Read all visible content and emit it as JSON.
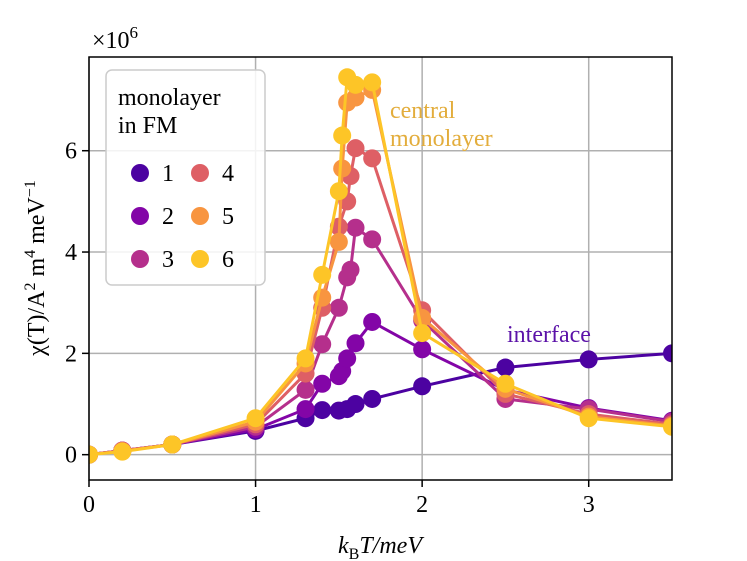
{
  "chart_data": {
    "type": "line",
    "offset_label": [
      "×10",
      "6"
    ],
    "xlabel": [
      "k",
      "B",
      "T/meV"
    ],
    "ylabel": [
      "χ(T)/A",
      "2",
      " m",
      "4",
      " meV",
      "−1"
    ],
    "xlim": [
      0,
      3.5
    ],
    "xticks": [
      0,
      1,
      2,
      3
    ],
    "ylim": [
      -0.5,
      7.85
    ],
    "yticks": [
      0,
      2,
      4,
      6
    ],
    "grid": true,
    "legend_position": "upper left",
    "legend_title": [
      "monolayer",
      "in FM"
    ],
    "series": [
      {
        "name": "1",
        "color": "#4c02a1",
        "x": [
          0,
          0.2,
          0.5,
          1,
          1.3,
          1.4,
          1.5,
          1.55,
          1.6,
          1.7,
          2,
          2.5,
          3,
          3.5
        ],
        "values": [
          0,
          0.08,
          0.2,
          0.47,
          0.72,
          0.88,
          0.87,
          0.9,
          1.0,
          1.1,
          1.35,
          1.72,
          1.88,
          2.0
        ]
      },
      {
        "name": "2",
        "color": "#8305a7",
        "x": [
          0,
          0.2,
          0.5,
          1,
          1.3,
          1.4,
          1.5,
          1.52,
          1.55,
          1.6,
          1.7,
          2,
          2.5,
          3,
          3.5
        ],
        "values": [
          0,
          0.08,
          0.2,
          0.5,
          0.9,
          1.4,
          1.55,
          1.65,
          1.9,
          2.2,
          2.62,
          2.08,
          1.28,
          0.92,
          0.67
        ]
      },
      {
        "name": "3",
        "color": "#b52f8c",
        "x": [
          0,
          0.2,
          0.5,
          1,
          1.3,
          1.4,
          1.5,
          1.55,
          1.57,
          1.6,
          1.7,
          2,
          2.5,
          3,
          3.5
        ],
        "values": [
          0,
          0.08,
          0.2,
          0.55,
          1.28,
          2.18,
          2.9,
          3.5,
          3.65,
          4.48,
          4.25,
          2.65,
          1.1,
          0.9,
          0.65
        ]
      },
      {
        "name": "4",
        "color": "#de5f65",
        "x": [
          0,
          0.2,
          0.5,
          1,
          1.3,
          1.4,
          1.5,
          1.55,
          1.57,
          1.6,
          1.7,
          2,
          2.5,
          3,
          3.5
        ],
        "values": [
          0,
          0.08,
          0.2,
          0.6,
          1.6,
          2.9,
          4.5,
          5.0,
          5.5,
          6.05,
          5.85,
          2.85,
          1.2,
          0.8,
          0.6
        ]
      },
      {
        "name": "5",
        "color": "#f89540",
        "x": [
          0,
          0.2,
          0.5,
          1,
          1.3,
          1.4,
          1.5,
          1.52,
          1.55,
          1.6,
          1.7,
          2,
          2.5,
          3,
          3.5
        ],
        "values": [
          0,
          0.07,
          0.2,
          0.65,
          1.8,
          3.1,
          4.2,
          5.65,
          6.95,
          7.05,
          7.2,
          2.7,
          1.3,
          0.75,
          0.57
        ]
      },
      {
        "name": "6",
        "color": "#fdc527",
        "x": [
          0,
          0.2,
          0.5,
          1,
          1.3,
          1.4,
          1.5,
          1.52,
          1.55,
          1.6,
          1.7,
          2,
          2.5,
          3,
          3.5
        ],
        "values": [
          0,
          0.06,
          0.2,
          0.72,
          1.9,
          3.55,
          5.2,
          6.3,
          7.45,
          7.3,
          7.35,
          2.4,
          1.4,
          0.72,
          0.55
        ]
      }
    ],
    "annotations": [
      {
        "lines": [
          "central",
          "monolayer"
        ],
        "color": "#e3ad3c"
      },
      {
        "lines": [
          "interface"
        ],
        "color": "#5b12a8"
      }
    ]
  }
}
